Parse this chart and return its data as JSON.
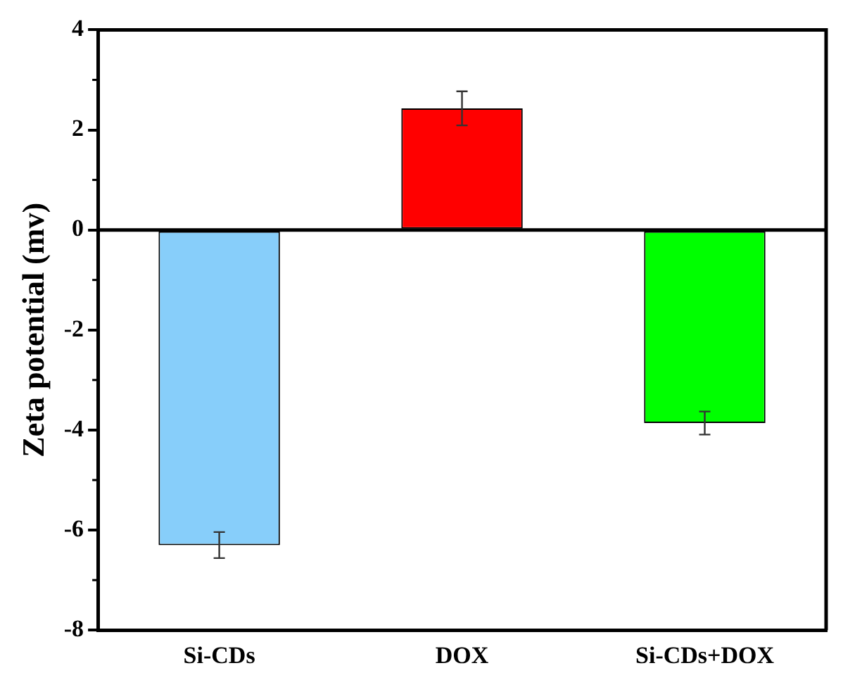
{
  "chart_data": {
    "type": "bar",
    "ylabel": "Zeta potential (mv)",
    "categories": [
      "Si-CDs",
      "DOX",
      "Si-CDs+DOX"
    ],
    "values": [
      -6.3,
      2.43,
      -3.86
    ],
    "colors": [
      "#87cefa",
      "#ff0000",
      "#00ff00"
    ],
    "errors": [
      0.26,
      0.34,
      0.23
    ],
    "ylim": [
      -8,
      4
    ],
    "yticks": [
      -8,
      -6,
      -4,
      -2,
      0,
      2,
      4
    ],
    "grid": false,
    "ref_lines": [
      {
        "axis": "y",
        "value": 0,
        "color": "#000000"
      }
    ]
  }
}
